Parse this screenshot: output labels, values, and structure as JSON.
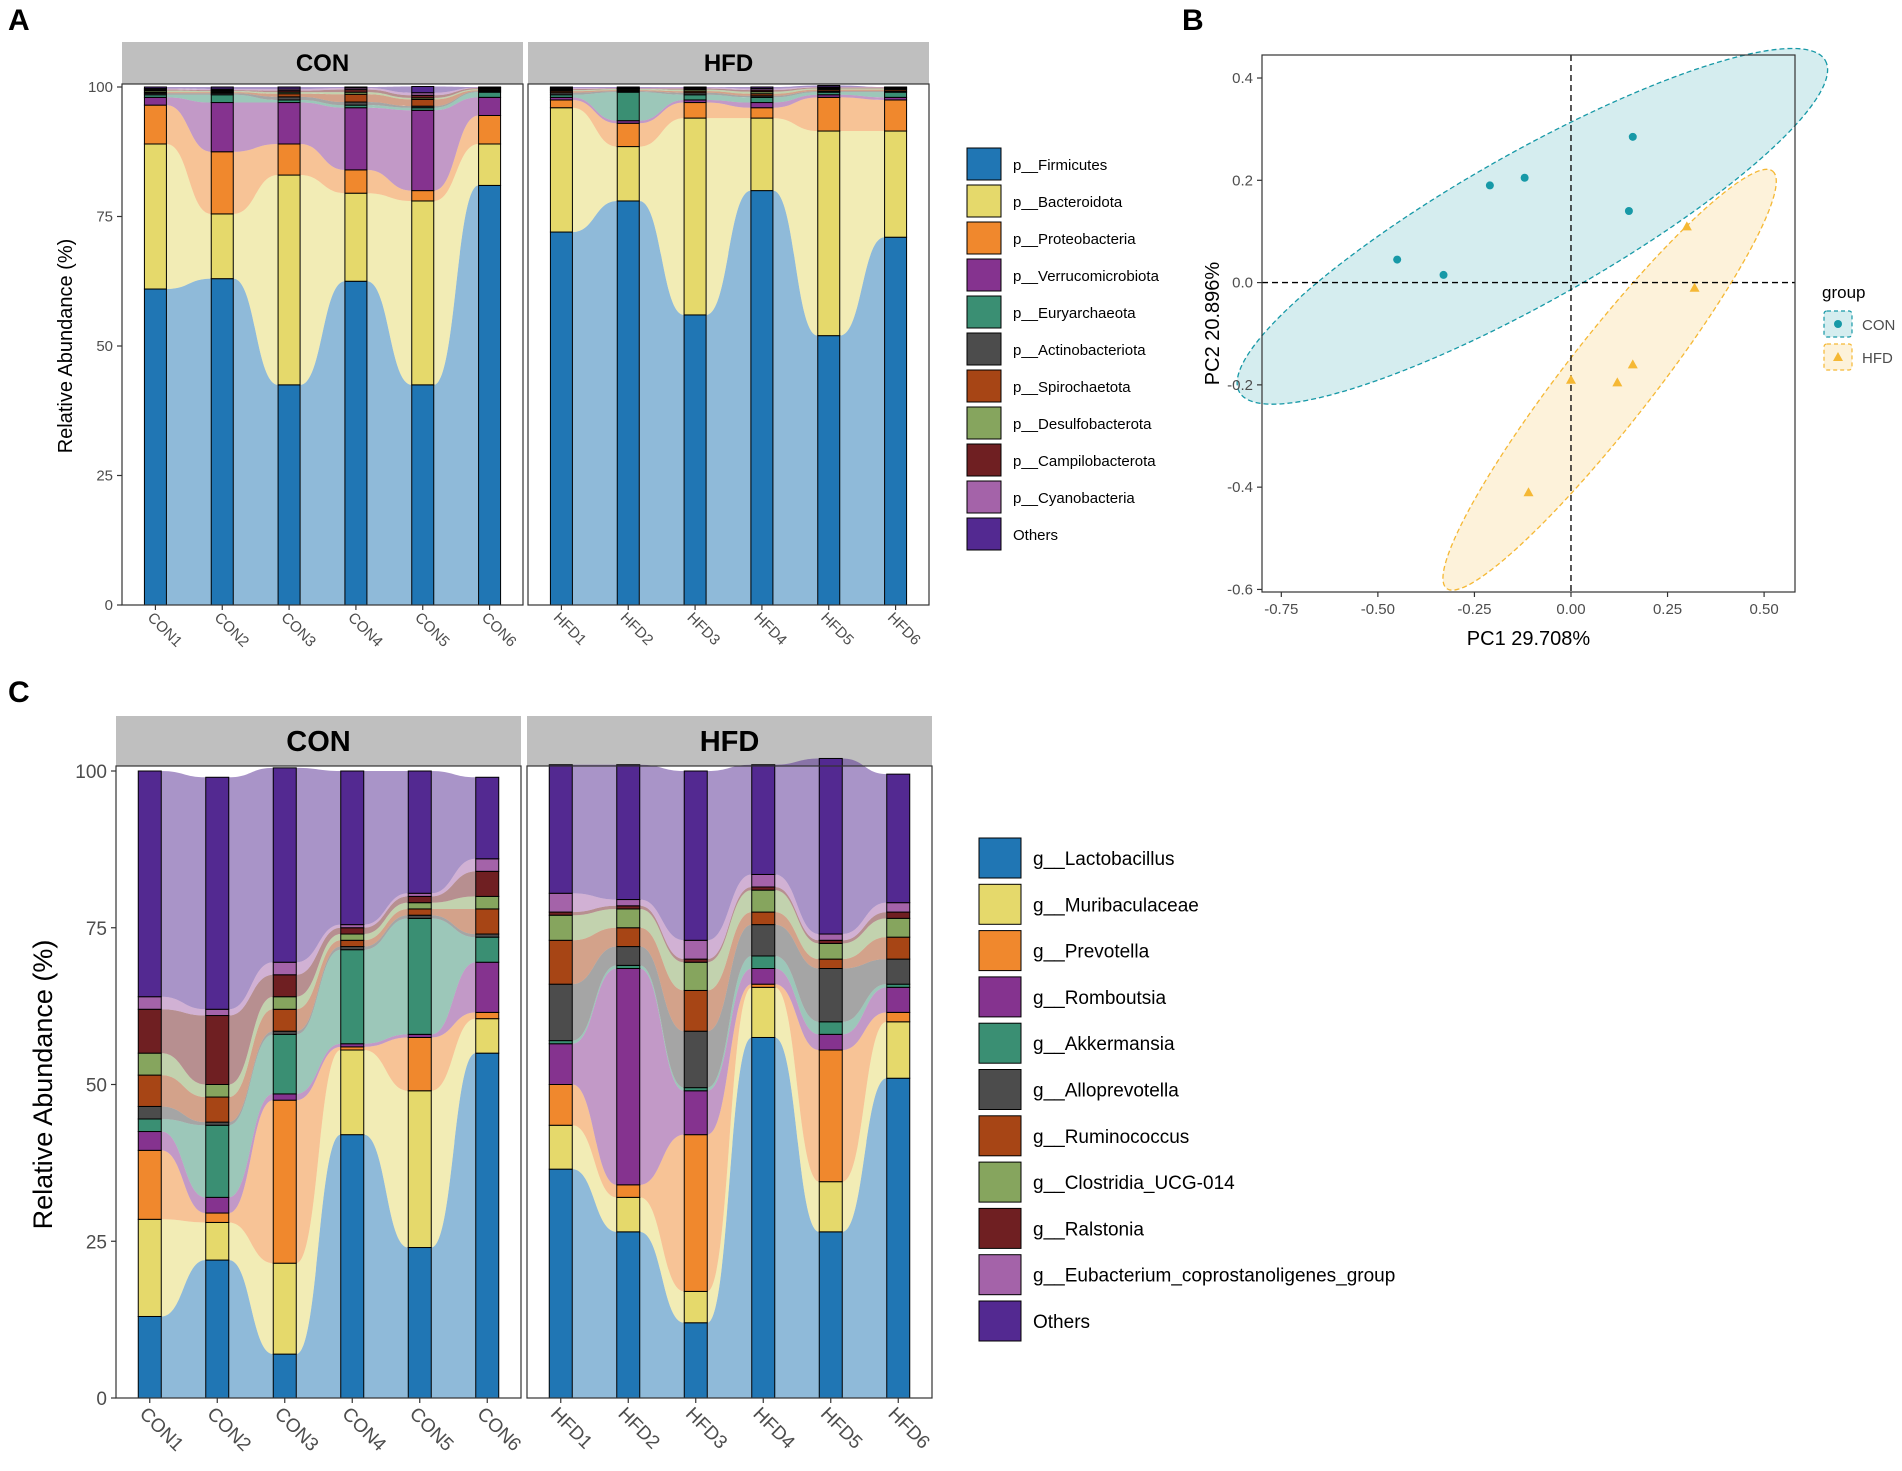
{
  "colors": {
    "taxa": [
      "#2076b4",
      "#e5d96b",
      "#f0882d",
      "#85338f",
      "#3a8f73",
      "#4c4c4c",
      "#a74515",
      "#86a55e",
      "#6f1f22",
      "#a463a9",
      "#532991"
    ],
    "strip_bg": "#bfbfbf",
    "con_group": "#1799a7",
    "hfd_group": "#f5b834"
  },
  "panels": {
    "A": {
      "label": "A",
      "ylabel": "Relative Abundance (%)",
      "yticks": [
        "0",
        "25",
        "50",
        "75",
        "100"
      ],
      "groups": [
        "CON",
        "HFD"
      ],
      "legend": [
        "p__Firmicutes",
        "p__Bacteroidota",
        "p__Proteobacteria",
        "p__Verrucomicrobiota",
        "p__Euryarchaeota",
        "p__Actinobacteriota",
        "p__Spirochaetota",
        "p__Desulfobacterota",
        "p__Campilobacterota",
        "p__Cyanobacteria",
        "Others"
      ]
    },
    "B": {
      "label": "B",
      "xlabel": "PC1 29.708%",
      "ylabel": "PC2 20.896%",
      "xticks": [
        "-0.75",
        "-0.50",
        "-0.25",
        "0.00",
        "0.25",
        "0.50"
      ],
      "yticks": [
        "0.4",
        "0.2",
        "0.0",
        "-0.2",
        "-0.4",
        "-0.6"
      ],
      "legend_title": "group",
      "legend": [
        "CON",
        "HFD"
      ]
    },
    "C": {
      "label": "C",
      "ylabel": "Relative Abundance (%)",
      "yticks": [
        "0",
        "25",
        "50",
        "75",
        "100"
      ],
      "groups": [
        "CON",
        "HFD"
      ],
      "legend": [
        "g__Lactobacillus",
        "g__Muribaculaceae",
        "g__Prevotella",
        "g__Romboutsia",
        "g__Akkermansia",
        "g__Alloprevotella",
        "g__Ruminococcus",
        "g__Clostridia_UCG-014",
        "g__Ralstonia",
        "g__Eubacterium_coprostanoligenes_group",
        "Others"
      ]
    }
  },
  "chart_data": [
    {
      "panel": "A",
      "type": "bar",
      "stacked": true,
      "alluvial_flows": true,
      "title": "",
      "xlabel": "",
      "ylabel": "Relative Abundance (%)",
      "ylim": [
        0,
        100
      ],
      "facets": [
        "CON",
        "HFD"
      ],
      "categories": [
        [
          "CON1",
          "CON2",
          "CON3",
          "CON4",
          "CON5",
          "CON6"
        ],
        [
          "HFD1",
          "HFD2",
          "HFD3",
          "HFD4",
          "HFD5",
          "HFD6"
        ]
      ],
      "series": [
        {
          "name": "p__Firmicutes",
          "values": [
            [
              61,
              63,
              42.5,
              62.5,
              42.5,
              81
            ],
            [
              72,
              78,
              56,
              80,
              52,
              71
            ]
          ]
        },
        {
          "name": "p__Bacteroidota",
          "values": [
            [
              28,
              12.5,
              40.5,
              17,
              35.5,
              8
            ],
            [
              24,
              10.5,
              38,
              14,
              39.5,
              20.5
            ]
          ]
        },
        {
          "name": "p__Proteobacteria",
          "values": [
            [
              7.5,
              12,
              6,
              4.5,
              2,
              5.5
            ],
            [
              1.5,
              4.5,
              3,
              2,
              6.5,
              6
            ]
          ]
        },
        {
          "name": "p__Verrucomicrobiota",
          "values": [
            [
              1.5,
              9.5,
              8,
              12,
              15.5,
              3.5
            ],
            [
              0.5,
              0.5,
              0.5,
              1,
              0.5,
              0.5
            ]
          ]
        },
        {
          "name": "p__Euryarchaeota",
          "values": [
            [
              0.5,
              1.5,
              0.5,
              0.5,
              0.5,
              1
            ],
            [
              0.5,
              5.5,
              1,
              1,
              0.5,
              1
            ]
          ]
        },
        {
          "name": "p__Actinobacteriota",
          "values": [
            [
              0.3,
              0.3,
              0.6,
              0.6,
              0.3,
              0.2
            ],
            [
              0.4,
              0.2,
              0.4,
              0.3,
              0.2,
              0.2
            ]
          ]
        },
        {
          "name": "p__Spirochaetota",
          "values": [
            [
              0.2,
              0.2,
              0.6,
              1.5,
              1.3,
              0.2
            ],
            [
              0.3,
              0.2,
              0.3,
              0.4,
              0.3,
              0.3
            ]
          ]
        },
        {
          "name": "p__Desulfobacterota",
          "values": [
            [
              0.3,
              0.2,
              0.3,
              0.4,
              0.3,
              0.2
            ],
            [
              0.2,
              0.2,
              0.3,
              0.4,
              0.2,
              0.2
            ]
          ]
        },
        {
          "name": "p__Campilobacterota",
          "values": [
            [
              0.2,
              0.2,
              0.3,
              0.5,
              0.5,
              0.2
            ],
            [
              0.2,
              0.1,
              0.2,
              0.3,
              0.2,
              0.2
            ]
          ]
        },
        {
          "name": "p__Cyanobacteria",
          "values": [
            [
              0.2,
              0.2,
              0.3,
              0.3,
              0.5,
              0.1
            ],
            [
              0.2,
              0.1,
              0.2,
              0.3,
              0.1,
              0.1
            ]
          ]
        },
        {
          "name": "Others",
          "values": [
            [
              0.3,
              0.4,
              0.4,
              0.2,
              1.2,
              0.1
            ],
            [
              0.2,
              0.2,
              0.1,
              0.3,
              0.3,
              0
            ]
          ]
        }
      ]
    },
    {
      "panel": "B",
      "type": "scatter",
      "title": "",
      "xlabel": "PC1 29.708%",
      "ylabel": "PC2 20.896%",
      "xlim": [
        -0.8,
        0.58
      ],
      "ylim": [
        -0.605,
        0.445
      ],
      "reference_lines": {
        "x": 0,
        "y": 0
      },
      "legend_title": "group",
      "series": [
        {
          "name": "CON",
          "marker": "circle",
          "x": [
            -0.45,
            -0.33,
            -0.21,
            -0.12,
            0.15,
            0.16
          ],
          "y": [
            0.045,
            0.015,
            0.19,
            0.205,
            0.14,
            0.285
          ],
          "ellipse": {
            "cx": -0.1,
            "cy": 0.11,
            "rx": 0.75,
            "ry": 0.165,
            "rotation_deg": 29.5
          }
        },
        {
          "name": "HFD",
          "marker": "triangle",
          "x": [
            0.3,
            0.32,
            0.16,
            0.12,
            0.0,
            -0.11
          ],
          "y": [
            0.11,
            -0.01,
            -0.16,
            -0.195,
            -0.19,
            -0.41
          ],
          "ellipse": {
            "cx": 0.1,
            "cy": -0.19,
            "rx": 0.59,
            "ry": 0.098,
            "rotation_deg": 52
          }
        }
      ]
    },
    {
      "panel": "C",
      "type": "bar",
      "stacked": true,
      "alluvial_flows": true,
      "title": "",
      "xlabel": "",
      "ylabel": "Relative Abundance (%)",
      "ylim": [
        0,
        100
      ],
      "facets": [
        "CON",
        "HFD"
      ],
      "categories": [
        [
          "CON1",
          "CON2",
          "CON3",
          "CON4",
          "CON5",
          "CON6"
        ],
        [
          "HFD1",
          "HFD2",
          "HFD3",
          "HFD4",
          "HFD5",
          "HFD6"
        ]
      ],
      "series": [
        {
          "name": "g__Lactobacillus",
          "values": [
            [
              13,
              22,
              7,
              42,
              24,
              55
            ],
            [
              36.5,
              26.5,
              12,
              57.5,
              26.5,
              51
            ]
          ]
        },
        {
          "name": "g__Muribaculaceae",
          "values": [
            [
              15.5,
              6,
              14.5,
              13.5,
              25,
              5.5
            ],
            [
              7,
              5.5,
              5,
              8,
              8,
              9
            ]
          ]
        },
        {
          "name": "g__Prevotella",
          "values": [
            [
              11,
              1.5,
              26,
              0.5,
              8.5,
              1
            ],
            [
              6.5,
              2,
              25,
              0.5,
              21,
              1.5
            ]
          ]
        },
        {
          "name": "g__Romboutsia",
          "values": [
            [
              3,
              2.5,
              1,
              0.5,
              0.5,
              8
            ],
            [
              6.5,
              34.5,
              7,
              2.5,
              2.5,
              4
            ]
          ]
        },
        {
          "name": "g__Akkermansia",
          "values": [
            [
              2,
              11.5,
              9.5,
              15,
              18.5,
              4
            ],
            [
              0.5,
              0.5,
              0.5,
              2,
              2,
              0.5
            ]
          ]
        },
        {
          "name": "g__Alloprevotella",
          "values": [
            [
              2,
              0.5,
              0.5,
              0.5,
              0.5,
              0.5
            ],
            [
              9,
              3,
              9,
              5,
              8.5,
              4
            ]
          ]
        },
        {
          "name": "g__Ruminococcus",
          "values": [
            [
              5,
              4,
              3.5,
              1,
              1,
              4
            ],
            [
              7,
              3,
              6.5,
              2,
              1.5,
              3.5
            ]
          ]
        },
        {
          "name": "g__Clostridia_UCG-014",
          "values": [
            [
              3.5,
              2,
              2,
              1,
              1,
              2
            ],
            [
              4,
              3,
              4.5,
              3.5,
              2.5,
              3
            ]
          ]
        },
        {
          "name": "g__Ralstonia",
          "values": [
            [
              7,
              11,
              3.5,
              1,
              1,
              4
            ],
            [
              0.5,
              0.5,
              0.5,
              0.5,
              0.5,
              1
            ]
          ]
        },
        {
          "name": "g__Eubacterium_coprostanoligenes_group",
          "values": [
            [
              2,
              1,
              2,
              0.5,
              0.5,
              2
            ],
            [
              3,
              1,
              3,
              2,
              1,
              1.5
            ]
          ]
        },
        {
          "name": "Others",
          "values": [
            [
              36,
              37,
              31,
              24.5,
              19.5,
              13
            ],
            [
              20.5,
              21.5,
              27,
              17.5,
              28,
              20.5
            ]
          ]
        }
      ]
    }
  ]
}
